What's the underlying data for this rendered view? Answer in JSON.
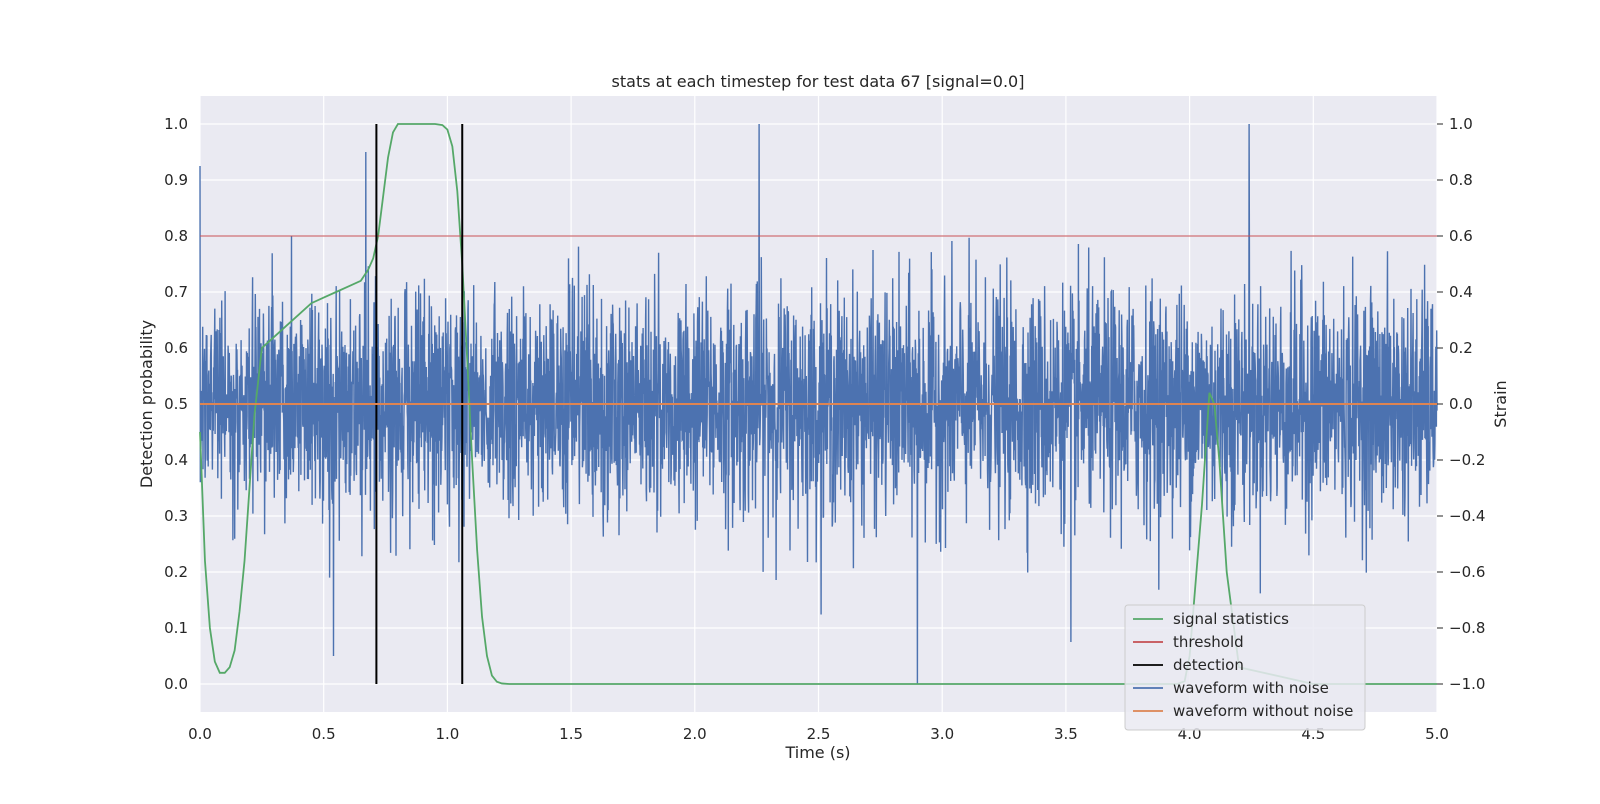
{
  "chart_data": {
    "type": "line",
    "title": "stats at each timestep for test data 67 [signal=0.0]",
    "xlabel": "Time (s)",
    "ylabel": "Detection probability",
    "ylabel_right": "Strain",
    "xlim": [
      0.0,
      5.0
    ],
    "ylim": [
      -0.05,
      1.05
    ],
    "ylim_right": [
      -1.1,
      1.1
    ],
    "x_ticks": [
      0.0,
      0.5,
      1.0,
      1.5,
      2.0,
      2.5,
      3.0,
      3.5,
      4.0,
      4.5,
      5.0
    ],
    "x_tick_labels": [
      "0.0",
      "0.5",
      "1.0",
      "1.5",
      "2.0",
      "2.5",
      "3.0",
      "3.5",
      "4.0",
      "4.5",
      "5.0"
    ],
    "y_ticks": [
      0.0,
      0.1,
      0.2,
      0.3,
      0.4,
      0.5,
      0.6,
      0.7,
      0.8,
      0.9,
      1.0
    ],
    "y_tick_labels": [
      "0.0",
      "0.1",
      "0.2",
      "0.3",
      "0.4",
      "0.5",
      "0.6",
      "0.7",
      "0.8",
      "0.9",
      "1.0"
    ],
    "y_right_ticks": [
      -1.0,
      -0.8,
      -0.6,
      -0.4,
      -0.2,
      0.0,
      0.2,
      0.4,
      0.6,
      0.8,
      1.0
    ],
    "y_right_tick_labels": [
      "−1.0",
      "−0.8",
      "−0.6",
      "−0.4",
      "−0.2",
      "0.0",
      "0.2",
      "0.4",
      "0.6",
      "0.8",
      "1.0"
    ],
    "grid": true,
    "legend_position": "lower-right",
    "colors": {
      "signal_statistics": "#55a868",
      "threshold": "#c44e52",
      "detection": "#000000",
      "waveform_with_noise": "#4c72b0",
      "waveform_without_noise": "#dd8452",
      "plot_background": "#eaeaf2",
      "grid": "#ffffff"
    },
    "series": [
      {
        "name": "signal statistics",
        "axis": "left",
        "x": [
          0.0,
          0.02,
          0.04,
          0.06,
          0.08,
          0.1,
          0.12,
          0.14,
          0.16,
          0.18,
          0.2,
          0.22,
          0.25,
          0.3,
          0.35,
          0.4,
          0.45,
          0.5,
          0.55,
          0.6,
          0.65,
          0.68,
          0.7,
          0.72,
          0.74,
          0.76,
          0.78,
          0.8,
          0.85,
          0.9,
          0.95,
          0.98,
          1.0,
          1.02,
          1.04,
          1.06,
          1.08,
          1.1,
          1.12,
          1.14,
          1.16,
          1.18,
          1.2,
          1.22,
          1.25,
          1.3,
          1.5,
          2.0,
          2.5,
          3.0,
          3.5,
          3.8,
          3.9,
          3.95,
          3.98,
          4.0,
          4.05,
          4.08,
          4.1,
          4.12,
          4.15,
          4.2,
          4.5,
          5.0
        ],
        "y": [
          0.45,
          0.22,
          0.1,
          0.04,
          0.02,
          0.02,
          0.03,
          0.06,
          0.13,
          0.22,
          0.35,
          0.48,
          0.6,
          0.62,
          0.64,
          0.66,
          0.68,
          0.69,
          0.7,
          0.71,
          0.72,
          0.74,
          0.76,
          0.8,
          0.87,
          0.94,
          0.985,
          1.0,
          1.0,
          1.0,
          1.0,
          0.998,
          0.99,
          0.96,
          0.88,
          0.75,
          0.58,
          0.4,
          0.24,
          0.12,
          0.05,
          0.015,
          0.004,
          0.001,
          0.0,
          0.0,
          0.0,
          0.0,
          0.0,
          0.0,
          0.0,
          0.0,
          0.0,
          0.0,
          0.005,
          0.05,
          0.32,
          0.52,
          0.5,
          0.4,
          0.2,
          0.03,
          0.0,
          0.0
        ]
      },
      {
        "name": "threshold",
        "axis": "left",
        "x": [
          0.0,
          5.0
        ],
        "y": [
          0.8,
          0.8
        ]
      },
      {
        "name": "detection",
        "axis": "left",
        "x": [
          0.713,
          0.713,
          1.06,
          1.06
        ],
        "y": [
          0.0,
          1.0,
          0.0,
          1.0
        ]
      },
      {
        "name": "waveform with noise",
        "axis": "right",
        "x_range": [
          0.0,
          5.0
        ],
        "num_points": 4096,
        "y_min": -1.0,
        "y_max": 1.0,
        "approx_std": 0.2,
        "notable_peaks": [
          {
            "x": 0.0,
            "y": 0.85
          },
          {
            "x": 0.67,
            "y": 0.9
          },
          {
            "x": 2.26,
            "y": 1.0
          },
          {
            "x": 4.24,
            "y": 1.0
          },
          {
            "x": 2.9,
            "y": -1.0
          },
          {
            "x": 0.54,
            "y": -0.9
          },
          {
            "x": 3.52,
            "y": -0.85
          }
        ]
      },
      {
        "name": "waveform without noise",
        "axis": "right",
        "x": [
          0.0,
          5.0
        ],
        "y": [
          0.0,
          0.0
        ]
      }
    ],
    "legend": [
      "signal statistics",
      "threshold",
      "detection",
      "waveform with noise",
      "waveform without noise"
    ]
  }
}
